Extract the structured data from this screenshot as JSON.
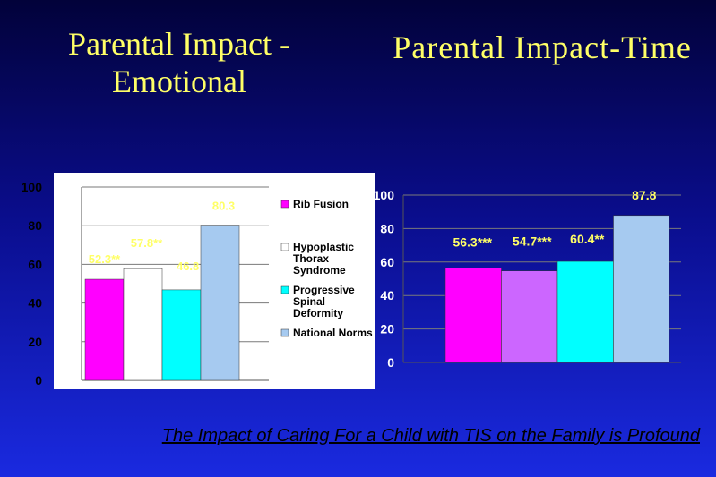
{
  "slide": {
    "title_left": "Parental Impact - Emotional",
    "title_right": "Parental Impact-Time",
    "footer": "The Impact of Caring For a Child with TIS on the Family is Profound",
    "colors": {
      "background_top": "#02023a",
      "background_bottom": "#1a2ae0",
      "title": "#ffff66",
      "data_label": "#ffff66"
    }
  },
  "chart_data": [
    {
      "type": "bar",
      "title": "Parental Impact - Emotional",
      "categories": [
        "Rib Fusion",
        "Hypoplastic Thorax Syndrome",
        "Progressive Spinal Deformity",
        "National Norms"
      ],
      "values": [
        52.3,
        57.8,
        46.8,
        80.3
      ],
      "data_labels": [
        "52.3**",
        "57.8**",
        "46.8 **",
        "80.3"
      ],
      "colors": [
        "#ff00ff",
        "#ffffff",
        "#00ffff",
        "#a6caf0"
      ],
      "legend": [
        {
          "label": "Rib Fusion",
          "color": "#ff00ff"
        },
        {
          "label": "Hypoplastic Thorax Syndrome",
          "color": "#ffffff"
        },
        {
          "label": "Progressive Spinal Deformity",
          "color": "#00ffff"
        },
        {
          "label": "National Norms",
          "color": "#a6caf0"
        }
      ],
      "legend_position": "right",
      "ylim": [
        0,
        100
      ],
      "yticks": [
        "0",
        "20",
        "40",
        "60",
        "80",
        "100"
      ],
      "grid": true
    },
    {
      "type": "bar",
      "title": "Parental Impact-Time",
      "values": [
        56.3,
        54.7,
        60.4,
        87.8
      ],
      "data_labels": [
        "56.3***",
        "54.7***",
        "60.4**",
        "87.8"
      ],
      "colors": [
        "#ff00ff",
        "#cc66ff",
        "#00ffff",
        "#a6caf0"
      ],
      "ylim": [
        0,
        100
      ],
      "yticks": [
        "0",
        "20",
        "40",
        "60",
        "80",
        "100"
      ],
      "grid": true
    }
  ]
}
